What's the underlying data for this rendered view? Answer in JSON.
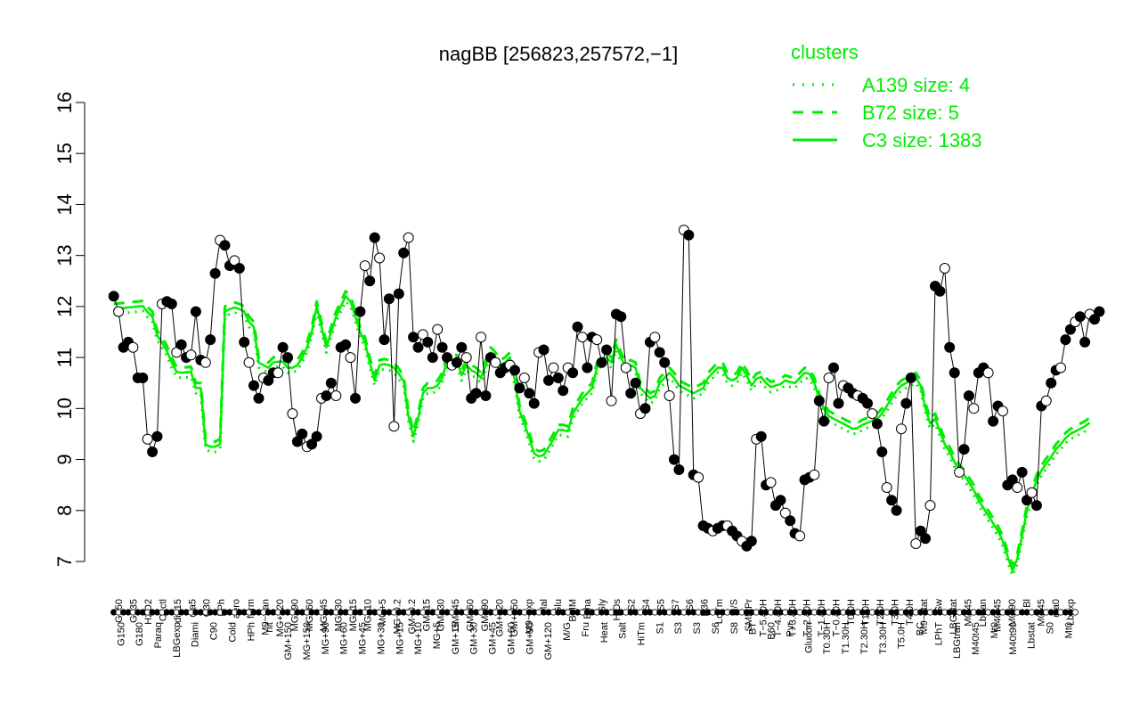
{
  "chart_data": {
    "type": "line",
    "title": "nagBB [256823,257572,−1]",
    "xlabel": "",
    "ylabel": "",
    "ylim": [
      7,
      16
    ],
    "yticks": [
      7,
      8,
      9,
      10,
      11,
      12,
      13,
      14,
      15,
      16
    ],
    "grid": false,
    "legend_position": "top-right",
    "legend": {
      "title": "clusters",
      "color": "#00ee00",
      "entries": [
        {
          "label": "A139 size: 4",
          "style": "dotted"
        },
        {
          "label": "B72 size: 5",
          "style": "dashed"
        },
        {
          "label": "C3 size: 1383",
          "style": "solid"
        }
      ]
    },
    "xtick_labels_upper": [
      "G150",
      "G135",
      "H2O2",
      "Oxctl",
      "dia15",
      "dia5",
      "C30",
      "LPh",
      "aero",
      "ferm",
      "M9−tran",
      "MG+120",
      "MG+90",
      "MG+60",
      "MG+45",
      "MG+30",
      "MG+15",
      "MG+10",
      "MG+5",
      "MG−0.2",
      "GM−0.2",
      "GM+15",
      "GM+30",
      "GM+45",
      "GM+60",
      "GM+90",
      "GM+120",
      "GM+150",
      "M9−exp",
      "Mal",
      "Glu",
      "BMM",
      "Etha",
      "Gly",
      "HiOs",
      "S2",
      "S4",
      "S5",
      "S7",
      "S6",
      "B36",
      "LoTm",
      "G/S",
      "SMMPr",
      "T−5.40H",
      "T−4.40H",
      "T−3.40H",
      "T−2.40H",
      "T−1.40H",
      "T−0.40H",
      "T0.0H",
      "T1.0H",
      "T2.0H",
      "T3.0H",
      "T4.0H",
      "M9−stat",
      "Sw",
      "LBGstat",
      "M0t45",
      "Lbtran",
      "M40t45",
      "M0t90",
      "Bl",
      "M0t45",
      "dia0",
      "Lbexp"
    ],
    "xtick_labels_lower": [
      "G150",
      "G180",
      "Paraq",
      "LBGexp",
      "Diami",
      "C90",
      "Cold",
      "HPh",
      "nit",
      "GM+150",
      "MG+150",
      "MG+90",
      "MG+60",
      "MG+45",
      "MG+30",
      "MG+15",
      "MG+10",
      "MG+5",
      "GM+15",
      "GM+30",
      "GM+45",
      "GM+60",
      "GM+90",
      "GM+120",
      "M/G",
      "Fru",
      "Heat",
      "Salt",
      "HiTm",
      "S1",
      "S3",
      "S3",
      "S6",
      "S8",
      "BT",
      "B60",
      "Pyr",
      "Glucon",
      "T0.30H",
      "T1.30H",
      "T2.30H",
      "T3.30H",
      "T5.0H",
      "BC",
      "LPhT",
      "LBGtran",
      "M40t45",
      "Mt0",
      "M40t90",
      "Lbstat",
      "S0",
      "Mt0"
    ],
    "x_count": 200,
    "series": [
      {
        "style": "solid",
        "values": [
          11.95,
          11.96,
          11.97,
          11.98,
          11.99,
          12.0,
          12.01,
          11.89,
          11.8,
          11.43,
          11.29,
          11.13,
          10.9,
          10.72,
          10.7,
          10.71,
          10.72,
          10.4,
          10.4,
          9.3,
          9.25,
          9.25,
          9.3,
          11.9,
          11.95,
          11.98,
          11.95,
          11.9,
          11.7,
          11.6,
          10.9,
          10.85,
          10.8,
          10.9,
          10.92,
          10.92,
          10.8,
          10.8,
          10.85,
          11.0,
          11.2,
          11.5,
          12.0,
          11.6,
          11.2,
          11.5,
          11.8,
          12.0,
          12.2,
          12.1,
          11.8,
          11.5,
          11.3,
          10.9,
          10.55,
          10.85,
          10.87,
          10.85,
          10.8,
          10.68,
          10.54,
          9.85,
          9.45,
          9.8,
          10.3,
          10.4,
          10.4,
          10.45,
          10.6,
          10.95,
          10.95,
          10.95,
          10.65,
          10.85,
          10.75,
          10.7,
          10.6,
          10.85,
          11.1,
          11.0,
          10.85,
          10.9,
          11.0,
          10.55,
          9.95,
          9.7,
          9.42,
          9.12,
          9.06,
          9.09,
          9.24,
          9.4,
          9.58,
          9.58,
          9.55,
          9.9,
          10.05,
          10.2,
          10.3,
          10.4,
          10.8,
          10.95,
          11.0,
          10.9,
          11.25,
          11.0,
          10.8,
          10.85,
          10.8,
          10.4,
          10.3,
          10.2,
          10.25,
          10.5,
          10.6,
          10.7,
          10.6,
          10.45,
          10.4,
          10.35,
          10.3,
          10.35,
          10.4,
          10.6,
          10.7,
          10.8,
          10.8,
          10.6,
          10.55,
          10.6,
          10.8,
          10.65,
          10.45,
          10.58,
          10.62,
          10.5,
          10.42,
          10.45,
          10.48,
          10.55,
          10.52,
          10.5,
          10.6,
          10.7,
          10.68,
          10.5,
          10.2,
          10.0,
          9.85,
          9.8,
          9.75,
          9.7,
          9.65,
          9.6,
          9.62,
          9.68,
          9.72,
          9.76,
          9.8,
          9.9,
          10.05,
          10.2,
          10.35,
          10.45,
          10.5,
          10.55,
          10.6,
          10.45,
          10.0,
          9.7,
          9.8,
          9.55,
          9.3,
          9.15,
          8.95,
          8.8,
          8.7,
          8.55,
          8.4,
          8.2,
          8.05,
          7.9,
          7.75,
          7.6,
          7.4,
          7.1,
          6.82,
          7.05,
          7.5,
          8.0,
          8.3,
          8.6,
          8.78,
          8.92,
          9.05,
          9.2,
          9.3,
          9.42,
          9.5,
          9.55,
          9.6,
          9.65,
          9.72
        ]
      },
      {
        "style": "dashed",
        "values": [
          12.05,
          12.06,
          12.07,
          12.08,
          12.09,
          12.1,
          12.11,
          11.99,
          11.9,
          11.53,
          11.39,
          11.23,
          11.0,
          10.82,
          10.8,
          10.81,
          10.82,
          10.5,
          10.5,
          9.4,
          9.35,
          9.35,
          9.4,
          12.0,
          12.05,
          12.08,
          12.05,
          12.0,
          11.8,
          11.7,
          11.0,
          10.95,
          10.9,
          11.0,
          11.02,
          11.02,
          10.9,
          10.9,
          10.95,
          11.1,
          11.3,
          11.6,
          12.1,
          11.7,
          11.3,
          11.6,
          11.9,
          12.1,
          12.3,
          12.2,
          11.9,
          11.6,
          11.4,
          11.0,
          10.65,
          10.95,
          10.97,
          10.95,
          10.9,
          10.78,
          10.64,
          9.95,
          9.55,
          9.9,
          10.4,
          10.5,
          10.5,
          10.55,
          10.7,
          11.05,
          11.05,
          11.05,
          10.75,
          10.95,
          10.85,
          10.8,
          10.7,
          10.95,
          11.2,
          11.1,
          10.95,
          11.0,
          11.1,
          10.65,
          10.05,
          9.8,
          9.52,
          9.22,
          9.16,
          9.19,
          9.34,
          9.5,
          9.68,
          9.68,
          9.65,
          10.0,
          10.15,
          10.3,
          10.4,
          10.5,
          10.9,
          11.05,
          11.1,
          11.0,
          11.35,
          11.1,
          10.9,
          10.95,
          10.9,
          10.5,
          10.4,
          10.3,
          10.35,
          10.6,
          10.7,
          10.8,
          10.7,
          10.55,
          10.5,
          10.45,
          10.4,
          10.45,
          10.5,
          10.7,
          10.8,
          10.9,
          10.9,
          10.7,
          10.65,
          10.7,
          10.9,
          10.75,
          10.55,
          10.68,
          10.72,
          10.6,
          10.52,
          10.55,
          10.58,
          10.65,
          10.62,
          10.6,
          10.7,
          10.8,
          10.78,
          10.6,
          10.3,
          10.1,
          9.95,
          9.9,
          9.85,
          9.8,
          9.75,
          9.7,
          9.72,
          9.78,
          9.82,
          9.86,
          9.9,
          10.0,
          10.15,
          10.3,
          10.45,
          10.55,
          10.6,
          10.65,
          10.7,
          10.55,
          10.1,
          9.8,
          9.9,
          9.65,
          9.4,
          9.25,
          9.05,
          8.9,
          8.8,
          8.65,
          8.5,
          8.3,
          8.15,
          8.0,
          7.85,
          7.7,
          7.5,
          7.2,
          6.92,
          7.15,
          7.6,
          8.1,
          8.4,
          8.7,
          8.88,
          9.02,
          9.15,
          9.3,
          9.4,
          9.52,
          9.6,
          9.65,
          9.7,
          9.75,
          9.82
        ]
      },
      {
        "style": "dotted",
        "values": [
          11.85,
          11.86,
          11.87,
          11.88,
          11.89,
          11.9,
          11.91,
          11.79,
          11.7,
          11.33,
          11.19,
          11.03,
          10.8,
          10.62,
          10.6,
          10.61,
          10.62,
          10.3,
          10.3,
          9.2,
          9.15,
          9.15,
          9.2,
          11.8,
          11.85,
          11.88,
          11.85,
          11.8,
          11.6,
          11.5,
          10.8,
          10.75,
          10.7,
          10.8,
          10.82,
          10.82,
          10.7,
          10.7,
          10.75,
          10.9,
          11.1,
          11.4,
          11.9,
          11.5,
          11.1,
          11.4,
          11.7,
          11.9,
          12.1,
          12.0,
          11.7,
          11.4,
          11.2,
          10.8,
          10.45,
          10.75,
          10.77,
          10.75,
          10.7,
          10.58,
          10.44,
          9.75,
          9.35,
          9.7,
          10.2,
          10.3,
          10.3,
          10.35,
          10.5,
          10.85,
          10.85,
          10.85,
          10.55,
          10.75,
          10.65,
          10.6,
          10.5,
          10.75,
          11.0,
          10.9,
          10.75,
          10.8,
          10.9,
          10.45,
          9.85,
          9.6,
          9.32,
          9.02,
          8.96,
          8.99,
          9.14,
          9.3,
          9.48,
          9.48,
          9.45,
          9.8,
          9.95,
          10.1,
          10.2,
          10.3,
          10.7,
          10.85,
          10.9,
          10.8,
          11.15,
          10.9,
          10.7,
          10.75,
          10.7,
          10.3,
          10.2,
          10.1,
          10.15,
          10.4,
          10.5,
          10.6,
          10.5,
          10.35,
          10.3,
          10.25,
          10.2,
          10.25,
          10.3,
          10.5,
          10.6,
          10.7,
          10.7,
          10.5,
          10.45,
          10.5,
          10.7,
          10.55,
          10.35,
          10.48,
          10.52,
          10.4,
          10.32,
          10.35,
          10.38,
          10.45,
          10.42,
          10.4,
          10.5,
          10.6,
          10.58,
          10.4,
          10.1,
          9.9,
          9.75,
          9.7,
          9.65,
          9.6,
          9.55,
          9.5,
          9.52,
          9.58,
          9.62,
          9.66,
          9.7,
          9.8,
          9.95,
          10.1,
          10.25,
          10.35,
          10.4,
          10.45,
          10.5,
          10.35,
          9.9,
          9.6,
          9.7,
          9.45,
          9.2,
          9.05,
          8.85,
          8.7,
          8.6,
          8.45,
          8.3,
          8.1,
          7.95,
          7.8,
          7.65,
          7.5,
          7.3,
          7.0,
          6.72,
          6.95,
          7.4,
          7.9,
          8.2,
          8.5,
          8.68,
          8.82,
          8.95,
          9.1,
          9.2,
          9.32,
          9.4,
          9.45,
          9.5,
          9.55,
          9.62
        ]
      },
      {
        "style": "points",
        "values": [
          12.2,
          11.9,
          11.2,
          11.3,
          11.2,
          10.6,
          10.6,
          9.4,
          9.15,
          9.45,
          12.05,
          12.1,
          12.05,
          11.1,
          11.25,
          11.0,
          11.05,
          11.9,
          10.95,
          10.9,
          11.35,
          12.65,
          13.3,
          13.2,
          12.8,
          12.9,
          12.75,
          11.3,
          10.9,
          10.45,
          10.2,
          10.6,
          10.55,
          10.7,
          10.7,
          11.2,
          11.0,
          9.9,
          9.35,
          9.5,
          9.25,
          9.3,
          9.45,
          10.2,
          10.25,
          10.5,
          10.25,
          11.2,
          11.25,
          11.0,
          10.2,
          11.9,
          12.8,
          12.5,
          13.35,
          12.95,
          11.35,
          12.15,
          9.65,
          12.25,
          13.05,
          13.35,
          11.4,
          11.2,
          11.45,
          11.3,
          11.0,
          11.55,
          11.2,
          11.0,
          10.85,
          10.9,
          11.2,
          11.0,
          10.2,
          10.3,
          11.4,
          10.25,
          11.0,
          10.9,
          10.7,
          10.8,
          10.85,
          10.75,
          10.4,
          10.6,
          10.3,
          10.1,
          11.1,
          11.15,
          10.55,
          10.8,
          10.6,
          10.35,
          10.8,
          10.7,
          11.6,
          11.4,
          10.8,
          11.4,
          11.35,
          10.9,
          11.15,
          10.15,
          11.85,
          11.8,
          10.8,
          10.3,
          10.5,
          9.9,
          10.0,
          11.3,
          11.4,
          11.1,
          10.9,
          10.25,
          9.0,
          8.8,
          13.5,
          13.4,
          8.7,
          8.65,
          7.7,
          7.65,
          7.6,
          7.65,
          7.7,
          7.7,
          7.6,
          7.5,
          7.4,
          7.3,
          7.4,
          9.4,
          9.45,
          8.5,
          8.55,
          8.1,
          8.2,
          7.95,
          7.8,
          7.55,
          7.5,
          8.6,
          8.65,
          8.7,
          10.15,
          9.75,
          10.6,
          10.8,
          10.1,
          10.45,
          10.4,
          10.3,
          10.25,
          10.2,
          10.1,
          9.9,
          9.7,
          9.15,
          8.45,
          8.2,
          8.0,
          9.6,
          10.1,
          10.6,
          7.35,
          7.6,
          7.45,
          8.1,
          12.4,
          12.3,
          12.75,
          11.2,
          10.7,
          8.75,
          9.2,
          10.25,
          10.0,
          10.7,
          10.8,
          10.7,
          9.75,
          10.05,
          9.95,
          8.5,
          8.6,
          8.45,
          8.75,
          8.2,
          8.35,
          8.1,
          10.05,
          10.15,
          10.5,
          10.75,
          10.8,
          11.35,
          11.55,
          11.7,
          11.8,
          11.3,
          11.85,
          11.75,
          11.9
        ]
      }
    ]
  }
}
